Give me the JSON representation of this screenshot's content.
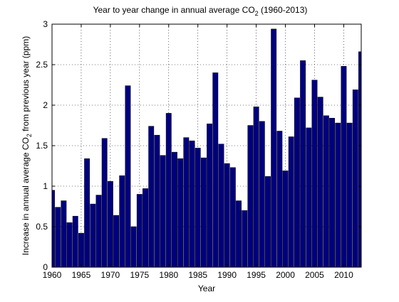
{
  "chart_data": {
    "type": "bar",
    "title": "Year to year change in annual average CO",
    "title_sub": "2",
    "title_tail": " (1960-2013)",
    "xlabel": "Year",
    "ylabel_prefix": "Increase in annual average CO",
    "ylabel_sub": "2",
    "ylabel_tail": " from previous year (ppm)",
    "x": [
      1960,
      1961,
      1962,
      1963,
      1964,
      1965,
      1966,
      1967,
      1968,
      1969,
      1970,
      1971,
      1972,
      1973,
      1974,
      1975,
      1976,
      1977,
      1978,
      1979,
      1980,
      1981,
      1982,
      1983,
      1984,
      1985,
      1986,
      1987,
      1988,
      1989,
      1990,
      1991,
      1992,
      1993,
      1994,
      1995,
      1996,
      1997,
      1998,
      1999,
      2000,
      2001,
      2002,
      2003,
      2004,
      2005,
      2006,
      2007,
      2008,
      2009,
      2010,
      2011,
      2012,
      2013
    ],
    "values": [
      0.95,
      0.74,
      0.82,
      0.55,
      0.63,
      0.42,
      1.34,
      0.78,
      0.89,
      1.59,
      1.06,
      0.64,
      1.13,
      2.24,
      0.5,
      0.9,
      0.97,
      1.74,
      1.63,
      1.38,
      1.9,
      1.42,
      1.34,
      1.6,
      1.56,
      1.47,
      1.35,
      1.77,
      2.4,
      1.52,
      1.28,
      1.23,
      0.82,
      0.7,
      1.75,
      1.98,
      1.8,
      1.12,
      2.94,
      1.68,
      1.19,
      1.61,
      2.09,
      2.55,
      1.72,
      2.31,
      2.1,
      1.87,
      1.84,
      1.78,
      2.48,
      1.78,
      2.19,
      2.66
    ],
    "xlim": [
      1960,
      2013
    ],
    "ylim": [
      0,
      3
    ],
    "xticks": [
      "1960",
      "1965",
      "1970",
      "1975",
      "1980",
      "1985",
      "1990",
      "1995",
      "2000",
      "2005",
      "2010"
    ],
    "yticks": [
      "0",
      "0.5",
      "1",
      "1.5",
      "2",
      "2.5",
      "3"
    ],
    "grid": true,
    "bar_color": "#00007f"
  }
}
